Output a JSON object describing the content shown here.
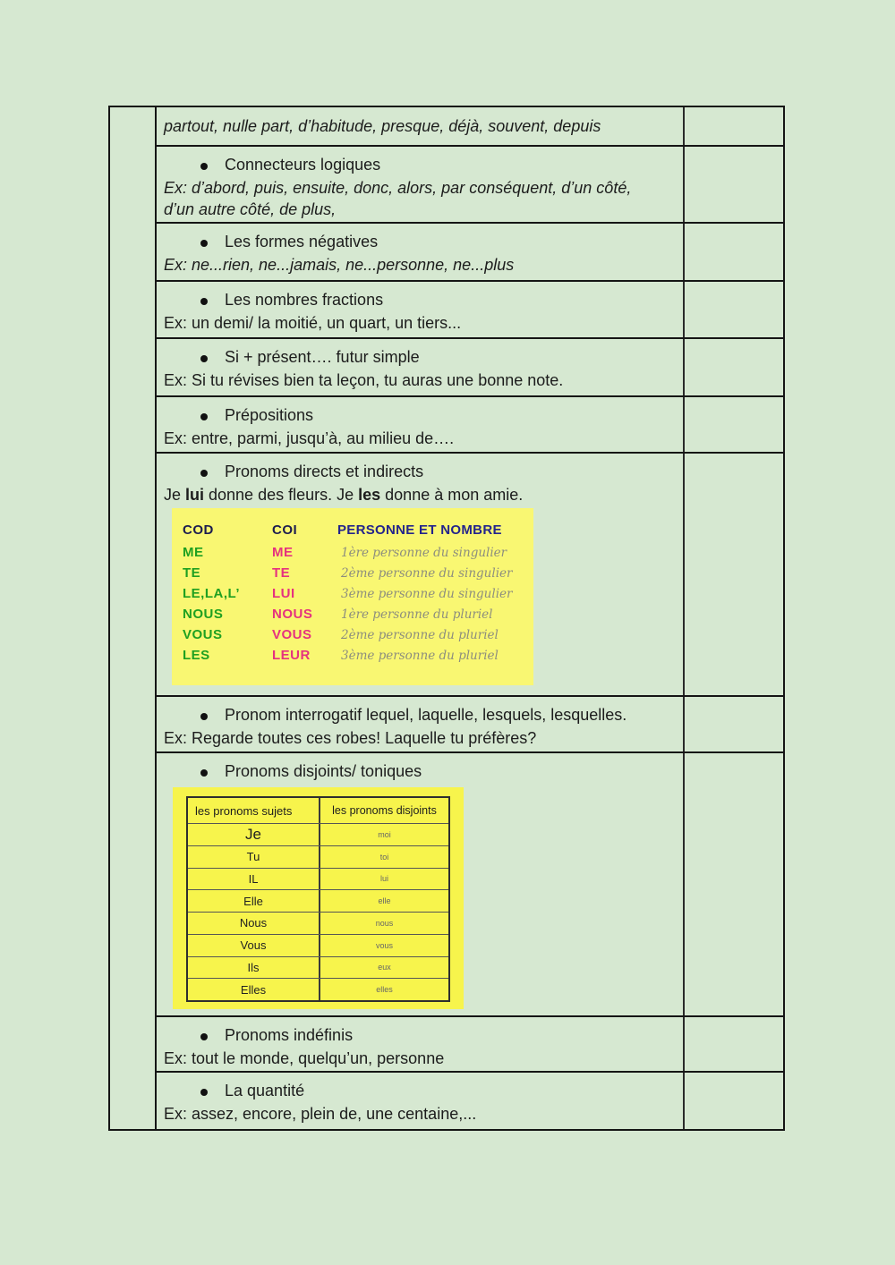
{
  "colors": {
    "page_background": "#d6e8d1",
    "table_border": "#151515",
    "yellow_image_1": "#f9f772",
    "yellow_image_2": "#f7f44c",
    "cod_green": "#1fa021",
    "coi_pink": "#e5327f",
    "header_navy": "#24248c",
    "desc_gray": "#8d8e7e"
  },
  "rows": [
    {
      "text": "partout, nulle part, d’habitude, presque, déjà, souvent, depuis"
    },
    {
      "heading": "Connecteurs logiques",
      "example": "Ex: d’abord, puis, ensuite, donc, alors, par conséquent, d’un côté, d’un autre côté, de plus,"
    },
    {
      "heading": "Les formes négatives",
      "example": "Ex: ne...rien, ne...jamais, ne...personne, ne...plus"
    },
    {
      "heading": "Les nombres fractions",
      "example": "Ex: un demi/ la moitié, un quart, un tiers..."
    },
    {
      "heading": "Si + présent…. futur simple",
      "example": "Ex: Si tu révises bien ta leçon, tu auras une bonne note."
    },
    {
      "heading": "Prépositions",
      "example": "Ex: entre, parmi, jusqu’à, au milieu de…."
    },
    {
      "heading": "Pronoms directs et indirects",
      "sentence": {
        "s1": "Je ",
        "b1": "lui",
        "s2": " donne des fleurs. Je ",
        "b2": "les",
        "s3": " donne à mon amie."
      }
    },
    {
      "heading": "Pronom interrogatif lequel, laquelle, lesquels, lesquelles.",
      "example": "Ex: Regarde toutes ces robes! Laquelle tu préfères?"
    },
    {
      "heading": "Pronoms disjoints/ toniques"
    },
    {
      "heading": "Pronoms indéfinis",
      "example": "Ex: tout le monde, quelqu’un, personne"
    },
    {
      "heading": "La quantité",
      "example": "Ex: assez, encore, plein de, une centaine,..."
    }
  ],
  "cod_table": {
    "header_cod": "COD",
    "header_coi": "COI",
    "header_personne": "PERSONNE ET NOMBRE",
    "rows": [
      {
        "cod": "ME",
        "coi": "ME",
        "desc": "1ère personne du singulier"
      },
      {
        "cod": "TE",
        "coi": "TE",
        "desc": "2ème personne du singulier"
      },
      {
        "cod": "LE,LA,L’",
        "coi": "LUI",
        "desc": "3ème personne du singulier"
      },
      {
        "cod": "NOUS",
        "coi": "NOUS",
        "desc": "1ère personne du pluriel"
      },
      {
        "cod": "VOUS",
        "coi": "VOUS",
        "desc": "2ème personne du pluriel"
      },
      {
        "cod": "LES",
        "coi": "LEUR",
        "desc": "3ème personne du pluriel"
      }
    ]
  },
  "disjoint_table": {
    "header_left": "les pronoms sujets",
    "header_right": "les pronoms disjoints",
    "rows": [
      {
        "subject": "Je",
        "disjoint": "moi"
      },
      {
        "subject": "Tu",
        "disjoint": "toi"
      },
      {
        "subject": "IL",
        "disjoint": "lui"
      },
      {
        "subject": "Elle",
        "disjoint": "elle"
      },
      {
        "subject": "Nous",
        "disjoint": "nous"
      },
      {
        "subject": "Vous",
        "disjoint": "vous"
      },
      {
        "subject": "Ils",
        "disjoint": "eux"
      },
      {
        "subject": "Elles",
        "disjoint": "elles"
      }
    ]
  }
}
